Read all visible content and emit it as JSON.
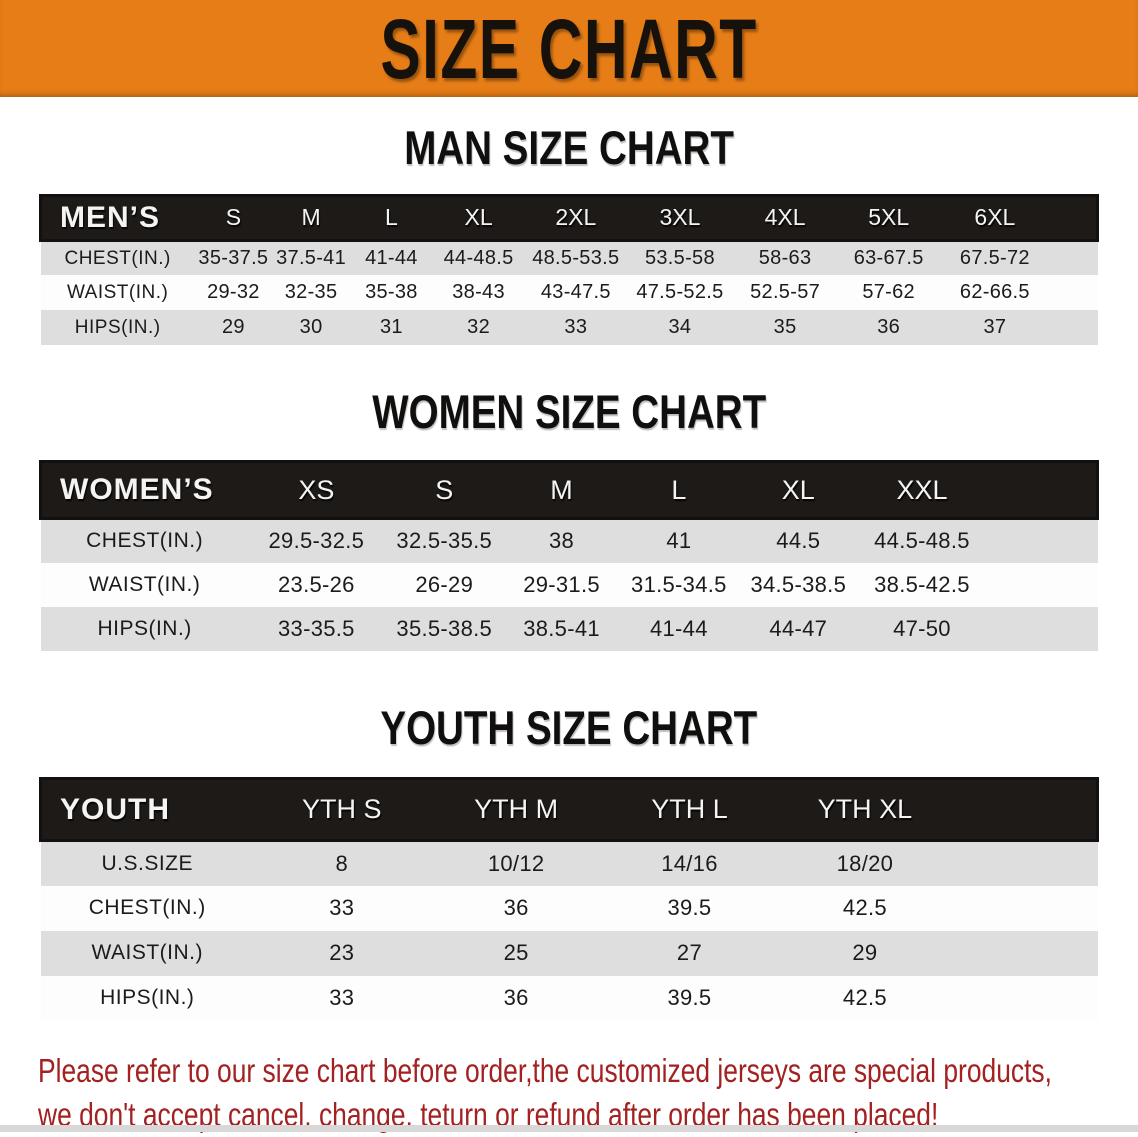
{
  "banner": {
    "title": "SIZE CHART"
  },
  "sections": [
    {
      "title": "MAN SIZE CHART",
      "header_label": "MEN’S",
      "columns": [
        "S",
        "M",
        "L",
        "XL",
        "2XL",
        "3XL",
        "4XL",
        "5XL",
        "6XL"
      ],
      "rows": [
        {
          "label": "CHEST(IN.)",
          "values": [
            "35-37.5",
            "37.5-41",
            "41-44",
            "44-48.5",
            "48.5-53.5",
            "53.5-58",
            "58-63",
            "63-67.5",
            "67.5-72"
          ]
        },
        {
          "label": "WAIST(IN.)",
          "values": [
            "29-32",
            "32-35",
            "35-38",
            "38-43",
            "43-47.5",
            "47.5-52.5",
            "52.5-57",
            "57-62",
            "62-66.5"
          ]
        },
        {
          "label": "HIPS(IN.)",
          "values": [
            "29",
            "30",
            "31",
            "32",
            "33",
            "34",
            "35",
            "36",
            "37"
          ]
        }
      ]
    },
    {
      "title": "WOMEN SIZE CHART",
      "header_label": "WOMEN’S",
      "columns": [
        "XS",
        "S",
        "M",
        "L",
        "XL",
        "XXL"
      ],
      "rows": [
        {
          "label": "CHEST(IN.)",
          "values": [
            "29.5-32.5",
            "32.5-35.5",
            "38",
            "41",
            "44.5",
            "44.5-48.5"
          ]
        },
        {
          "label": "WAIST(IN.)",
          "values": [
            "23.5-26",
            "26-29",
            "29-31.5",
            "31.5-34.5",
            "34.5-38.5",
            "38.5-42.5"
          ]
        },
        {
          "label": "HIPS(IN.)",
          "values": [
            "33-35.5",
            "35.5-38.5",
            "38.5-41",
            "41-44",
            "44-47",
            "47-50"
          ]
        }
      ]
    },
    {
      "title": "YOUTH SIZE CHART",
      "header_label": "YOUTH",
      "columns": [
        "YTH S",
        "YTH M",
        "YTH L",
        "YTH XL"
      ],
      "rows": [
        {
          "label": "U.S.SIZE",
          "values": [
            "8",
            "10/12",
            "14/16",
            "18/20"
          ]
        },
        {
          "label": "CHEST(IN.)",
          "values": [
            "33",
            "36",
            "39.5",
            "42.5"
          ]
        },
        {
          "label": "WAIST(IN.)",
          "values": [
            "23",
            "25",
            "27",
            "29"
          ]
        },
        {
          "label": "HIPS(IN.)",
          "values": [
            "33",
            "36",
            "39.5",
            "42.5"
          ]
        }
      ]
    }
  ],
  "disclaimer": {
    "line1": "Please refer to our size chart before order,the customized jerseys are special products,",
    "line2": "we don't accept cancel, change, teturn or refund after order has been placed!"
  },
  "colors": {
    "banner_bg": "#e67d17",
    "banner_text": "#17110c",
    "table_header_bg": "#1d1a18",
    "table_header_text": "#f5f4f2",
    "row_shaded": "#dedede",
    "row_plain": "#fdfdfd",
    "disclaimer_text": "#a32121"
  }
}
